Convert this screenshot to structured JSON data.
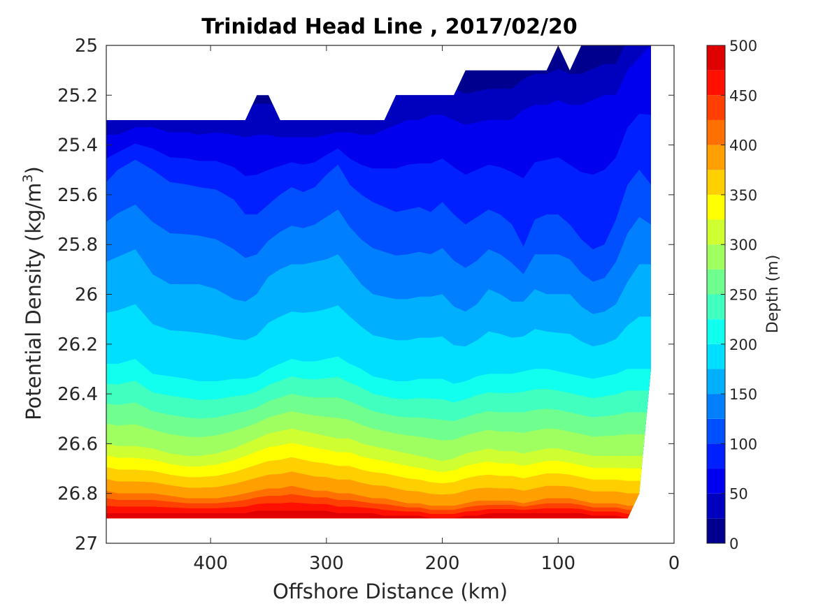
{
  "chart_data": {
    "type": "contour",
    "title": "Trinidad Head Line , 2017/02/20",
    "xlabel": "Offshore Distance (km)",
    "ylabel": "Potential Density (kg/m³)",
    "ylabel_parts": {
      "main": "Potential Density (kg/m",
      "sup": "3",
      "end": ")"
    },
    "x_reversed": true,
    "y_reversed": true,
    "xlim": [
      490,
      0
    ],
    "ylim": [
      25,
      27
    ],
    "x_ticks": [
      400,
      300,
      200,
      100,
      0
    ],
    "y_ticks": [
      25,
      25.2,
      25.4,
      25.6,
      25.8,
      26,
      26.2,
      26.4,
      26.6,
      26.8,
      27
    ],
    "x_tick_labels": [
      "400",
      "300",
      "200",
      "100",
      "0"
    ],
    "y_tick_labels": [
      "25",
      "25.2",
      "25.4",
      "25.6",
      "25.8",
      "26",
      "26.2",
      "26.4",
      "26.6",
      "26.8",
      "27"
    ],
    "colorbar": {
      "label": "Depth (m)",
      "range": [
        0,
        500
      ],
      "ticks": [
        0,
        50,
        100,
        150,
        200,
        250,
        300,
        350,
        400,
        450,
        500
      ],
      "tick_labels": [
        "0",
        "50",
        "100",
        "150",
        "200",
        "250",
        "300",
        "350",
        "400",
        "450",
        "500"
      ],
      "level_step": 25,
      "colors": [
        "#00008f",
        "#0000bf",
        "#0000ef",
        "#0020ff",
        "#0050ff",
        "#0080ff",
        "#00b0ff",
        "#00dfff",
        "#10ffef",
        "#40ffbf",
        "#70ff8f",
        "#9fff60",
        "#cfff30",
        "#ffff00",
        "#ffcf00",
        "#ff9f00",
        "#ff7000",
        "#ff4000",
        "#ff1000",
        "#df0000"
      ]
    },
    "stations_x": [
      490,
      480,
      465,
      450,
      435,
      420,
      410,
      395,
      380,
      370,
      360,
      350,
      340,
      330,
      320,
      310,
      300,
      290,
      280,
      270,
      260,
      250,
      240,
      230,
      220,
      210,
      200,
      190,
      180,
      170,
      160,
      150,
      140,
      130,
      120,
      110,
      100,
      90,
      80,
      70,
      60,
      50,
      40,
      30,
      20
    ],
    "isopycnal_depth_50m": [
      25.36,
      25.36,
      25.33,
      25.33,
      25.35,
      25.35,
      25.36,
      25.35,
      25.36,
      25.37,
      25.36,
      25.36,
      25.37,
      25.37,
      25.37,
      25.37,
      25.36,
      25.35,
      25.35,
      25.36,
      25.36,
      25.34,
      25.32,
      25.3,
      25.3,
      25.28,
      25.28,
      25.3,
      25.32,
      25.31,
      25.3,
      25.3,
      25.3,
      25.26,
      25.24,
      25.24,
      25.22,
      25.24,
      25.24,
      25.22,
      25.2,
      25.2,
      25.1,
      25.05,
      25.0
    ],
    "isopycnal_depth_100m": [
      25.55,
      25.5,
      25.46,
      25.5,
      25.55,
      25.56,
      25.57,
      25.58,
      25.62,
      25.68,
      25.68,
      25.64,
      25.6,
      25.57,
      25.59,
      25.57,
      25.52,
      25.48,
      25.56,
      25.6,
      25.63,
      25.65,
      25.67,
      25.66,
      25.65,
      25.67,
      25.63,
      25.68,
      25.72,
      25.69,
      25.66,
      25.68,
      25.72,
      25.81,
      25.7,
      25.68,
      25.68,
      25.72,
      25.78,
      25.82,
      25.8,
      25.7,
      25.56,
      25.5,
      25.56
    ],
    "isopycnal_depth_150m": [
      25.87,
      25.85,
      25.82,
      25.92,
      25.96,
      25.96,
      25.96,
      25.98,
      26.02,
      26.03,
      26.0,
      25.93,
      25.9,
      25.88,
      25.88,
      25.87,
      25.86,
      25.84,
      25.9,
      25.96,
      26.0,
      26.01,
      26.02,
      26.02,
      26.01,
      26.01,
      26.0,
      26.05,
      26.07,
      26.04,
      25.98,
      26.0,
      26.03,
      26.03,
      25.98,
      26.0,
      26.0,
      26.0,
      26.05,
      26.08,
      26.07,
      26.04,
      25.95,
      25.88,
      25.88
    ],
    "isopycnal_depth_200m": [
      26.28,
      26.28,
      26.26,
      26.32,
      26.33,
      26.34,
      26.35,
      26.35,
      26.34,
      26.34,
      26.33,
      26.3,
      26.28,
      26.26,
      26.27,
      26.27,
      26.26,
      26.25,
      26.28,
      26.3,
      26.33,
      26.34,
      26.35,
      26.35,
      26.34,
      26.34,
      26.34,
      26.36,
      26.35,
      26.33,
      26.32,
      26.32,
      26.32,
      26.31,
      26.3,
      26.3,
      26.31,
      26.32,
      26.33,
      26.34,
      26.33,
      26.32,
      26.3,
      26.3,
      26.3
    ],
    "isopycnal_depth_300m": [
      26.6,
      26.61,
      26.61,
      26.62,
      26.64,
      26.65,
      26.65,
      26.64,
      26.62,
      26.6,
      26.58,
      26.56,
      26.55,
      26.54,
      26.55,
      26.56,
      26.57,
      26.58,
      26.58,
      26.6,
      26.61,
      26.62,
      26.63,
      26.64,
      26.65,
      26.66,
      26.67,
      26.66,
      26.64,
      26.63,
      26.62,
      26.63,
      26.63,
      26.64,
      26.63,
      26.62,
      26.62,
      26.63,
      26.64,
      26.65,
      26.65,
      26.65,
      26.65,
      26.65,
      26.65
    ],
    "isopycnal_depth_400m": [
      26.79,
      26.8,
      26.8,
      26.8,
      26.81,
      26.82,
      26.82,
      26.82,
      26.81,
      26.8,
      26.79,
      26.78,
      26.78,
      26.77,
      26.78,
      26.79,
      26.79,
      26.8,
      26.8,
      26.81,
      26.82,
      26.82,
      26.83,
      26.84,
      26.84,
      26.85,
      26.85,
      26.85,
      26.84,
      26.83,
      26.83,
      26.83,
      26.83,
      26.84,
      26.83,
      26.82,
      26.82,
      26.82,
      26.83,
      26.84,
      26.84,
      26.84,
      26.85,
      26.85,
      26.85
    ],
    "isopycnal_depth_475m": [
      26.88,
      26.88,
      26.88,
      26.88,
      26.88,
      26.88,
      26.88,
      26.88,
      26.88,
      26.88,
      26.87,
      26.87,
      26.87,
      26.87,
      26.87,
      26.87,
      26.87,
      26.88,
      26.88,
      26.88,
      26.88,
      26.89,
      26.89,
      26.89,
      26.89,
      26.9,
      26.9,
      26.9,
      26.89,
      26.89,
      26.88,
      26.88,
      26.88,
      26.88,
      26.88,
      26.88,
      26.88,
      26.88,
      26.88,
      26.89,
      26.89,
      26.89,
      26.9,
      26.9,
      26.9
    ],
    "data_top_sigma": [
      25.3,
      25.3,
      25.3,
      25.3,
      25.3,
      25.3,
      25.3,
      25.3,
      25.3,
      25.3,
      25.2,
      25.2,
      25.3,
      25.3,
      25.3,
      25.3,
      25.3,
      25.3,
      25.3,
      25.3,
      25.3,
      25.3,
      25.2,
      25.2,
      25.2,
      25.2,
      25.2,
      25.2,
      25.1,
      25.1,
      25.1,
      25.1,
      25.1,
      25.1,
      25.1,
      25.1,
      25.0,
      25.1,
      25.0,
      25.0,
      25.0,
      25.0,
      25.0,
      25.0,
      25.0
    ],
    "data_bottom_sigma": [
      26.9,
      26.9,
      26.9,
      26.9,
      26.9,
      26.9,
      26.9,
      26.9,
      26.9,
      26.9,
      26.9,
      26.9,
      26.9,
      26.9,
      26.9,
      26.9,
      26.9,
      26.9,
      26.9,
      26.9,
      26.9,
      26.9,
      26.9,
      26.9,
      26.9,
      26.9,
      26.9,
      26.9,
      26.9,
      26.9,
      26.9,
      26.9,
      26.9,
      26.9,
      26.9,
      26.9,
      26.9,
      26.9,
      26.9,
      26.9,
      26.9,
      26.9,
      26.9,
      26.8,
      26.3
    ]
  }
}
